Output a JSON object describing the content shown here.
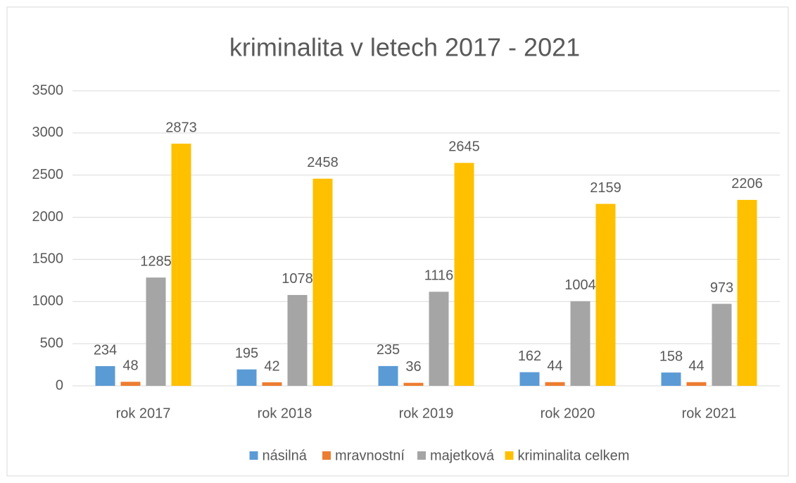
{
  "chart_data": {
    "type": "bar",
    "title": "kriminalita v letech 2017 - 2021",
    "categories": [
      "rok 2017",
      "rok 2018",
      "rok 2019",
      "rok 2020",
      "rok 2021"
    ],
    "series": [
      {
        "name": "násilná",
        "color": "#5b9bd5",
        "values": [
          234,
          195,
          235,
          162,
          158
        ]
      },
      {
        "name": "mravnostní",
        "color": "#ed7d31",
        "values": [
          48,
          42,
          36,
          44,
          44
        ]
      },
      {
        "name": "majetková",
        "color": "#a5a5a5",
        "values": [
          1285,
          1078,
          1116,
          1004,
          973
        ]
      },
      {
        "name": "kriminalita celkem",
        "color": "#ffc000",
        "values": [
          2873,
          2458,
          2645,
          2159,
          2206
        ]
      }
    ],
    "ylim": [
      0,
      3500
    ],
    "yticks": [
      0,
      500,
      1000,
      1500,
      2000,
      2500,
      3000,
      3500
    ],
    "grid": true,
    "legend": "bottom"
  }
}
